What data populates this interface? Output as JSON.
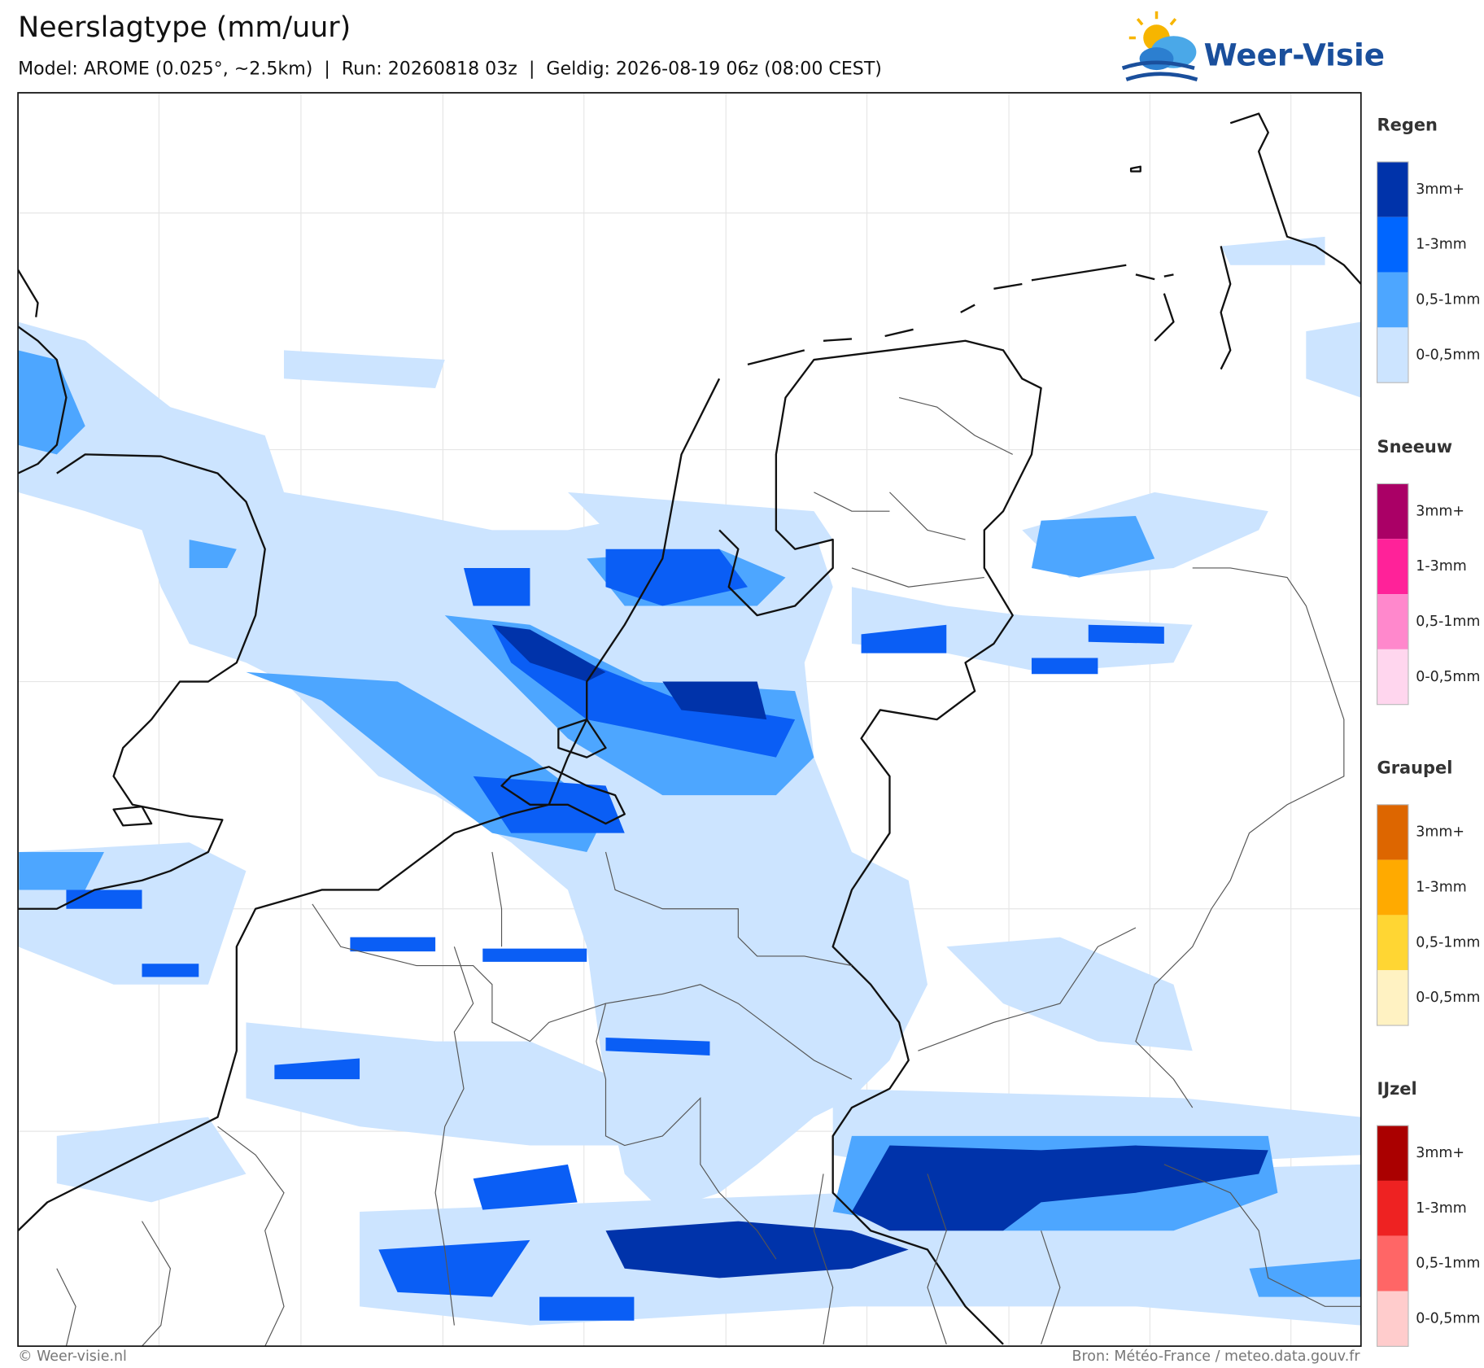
{
  "header": {
    "title": "Neerslagtype (mm/uur)",
    "subtitle": "Model: AROME (0.025°, ~2.5km)  |  Run: 20260818 03z  |  Geldig: 2026-08-19 06z (08:00 CEST)"
  },
  "logo": "Weer-Visie",
  "legend": [
    {
      "title": "Regen",
      "items": [
        {
          "label": "3mm+",
          "color": "#0033aa"
        },
        {
          "label": "1-3mm",
          "color": "#0066ff"
        },
        {
          "label": "0,5-1mm",
          "color": "#4da6ff"
        },
        {
          "label": "0-0,5mm",
          "color": "#cce4ff"
        }
      ]
    },
    {
      "title": "Sneeuw",
      "items": [
        {
          "label": "3mm+",
          "color": "#aa0066"
        },
        {
          "label": "1-3mm",
          "color": "#ff2299"
        },
        {
          "label": "0,5-1mm",
          "color": "#ff88cc"
        },
        {
          "label": "0-0,5mm",
          "color": "#ffd6ee"
        }
      ]
    },
    {
      "title": "Graupel",
      "items": [
        {
          "label": "3mm+",
          "color": "#dd6600"
        },
        {
          "label": "1-3mm",
          "color": "#ffaa00"
        },
        {
          "label": "0,5-1mm",
          "color": "#ffd633"
        },
        {
          "label": "0-0,5mm",
          "color": "#fff2c2"
        }
      ]
    },
    {
      "title": "IJzel",
      "items": [
        {
          "label": "3mm+",
          "color": "#aa0000"
        },
        {
          "label": "1-3mm",
          "color": "#ee2222"
        },
        {
          "label": "0,5-1mm",
          "color": "#ff6666"
        },
        {
          "label": "0-0,5mm",
          "color": "#ffcccc"
        }
      ]
    }
  ],
  "footer": {
    "left": "© Weer-visie.nl",
    "right": "Bron: Météo-France / meteo.data.gouv.fr"
  }
}
